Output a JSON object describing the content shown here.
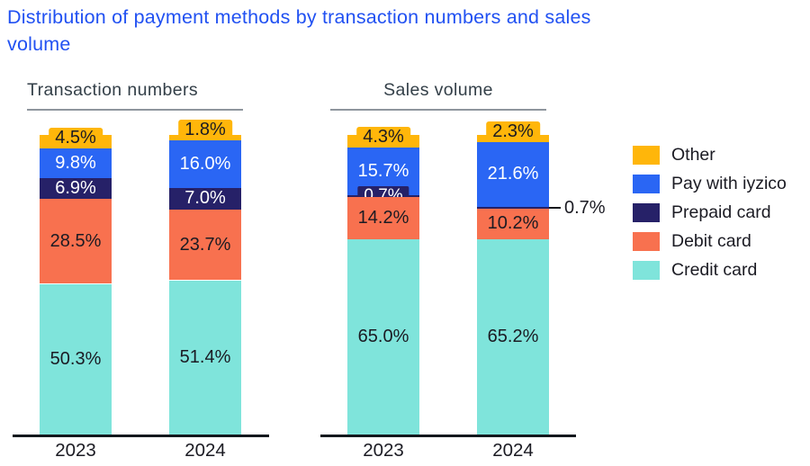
{
  "title": "Distribution of payment methods by transaction numbers and sales volume",
  "colors": {
    "title_accent": "#2151F2",
    "section_header_text": "#333F48",
    "section_header_underline": "#8F969E",
    "axis_line": "#14181D",
    "label_dark": "#1B1B23",
    "label_light": "#FFFFFF",
    "Other": "#FFB60A",
    "Pay with iyzico": "#2A66F4",
    "Prepaid card": "#262168",
    "Debit card": "#F8714F",
    "Credit card": "#7FE4DB"
  },
  "chart_data": {
    "type": "bar",
    "subtype": "stacked-100-percent",
    "unit": "%",
    "ylim": [
      0,
      100
    ],
    "grid": "off",
    "value_format": "one-decimal-percent",
    "title": "Distribution of payment methods by transaction numbers and sales volume",
    "stack_order_bottom_to_top": [
      "Credit card",
      "Debit card",
      "Prepaid card",
      "Pay with iyzico",
      "Other"
    ],
    "legend": {
      "position": "right",
      "items": [
        "Other",
        "Pay with iyzico",
        "Prepaid card",
        "Debit card",
        "Credit card"
      ]
    },
    "groups": [
      {
        "label": "Transaction numbers",
        "categories": [
          "2023",
          "2024"
        ],
        "bars": [
          {
            "category": "2023",
            "prepaid_label_style": "inside",
            "values": {
              "Credit card": 50.3,
              "Debit card": 28.5,
              "Prepaid card": 6.9,
              "Pay with iyzico": 9.8,
              "Other": 4.5
            }
          },
          {
            "category": "2024",
            "prepaid_label_style": "inside",
            "values": {
              "Credit card": 51.4,
              "Debit card": 23.7,
              "Prepaid card": 7.0,
              "Pay with iyzico": 16.0,
              "Other": 1.8
            }
          }
        ]
      },
      {
        "label": "Sales volume",
        "categories": [
          "2023",
          "2024"
        ],
        "bars": [
          {
            "category": "2023",
            "prepaid_label_style": "box",
            "values": {
              "Credit card": 65.0,
              "Debit card": 14.2,
              "Prepaid card": 0.7,
              "Pay with iyzico": 15.7,
              "Other": 4.3
            }
          },
          {
            "category": "2024",
            "prepaid_label_style": "callout-right",
            "values": {
              "Credit card": 65.2,
              "Debit card": 10.2,
              "Prepaid card": 0.7,
              "Pay with iyzico": 21.6,
              "Other": 2.3
            }
          }
        ]
      }
    ],
    "annotations": [
      {
        "text": "0.7%",
        "attached_to": "Sales volume / 2024 / Prepaid card",
        "style": "callout-right"
      }
    ]
  }
}
